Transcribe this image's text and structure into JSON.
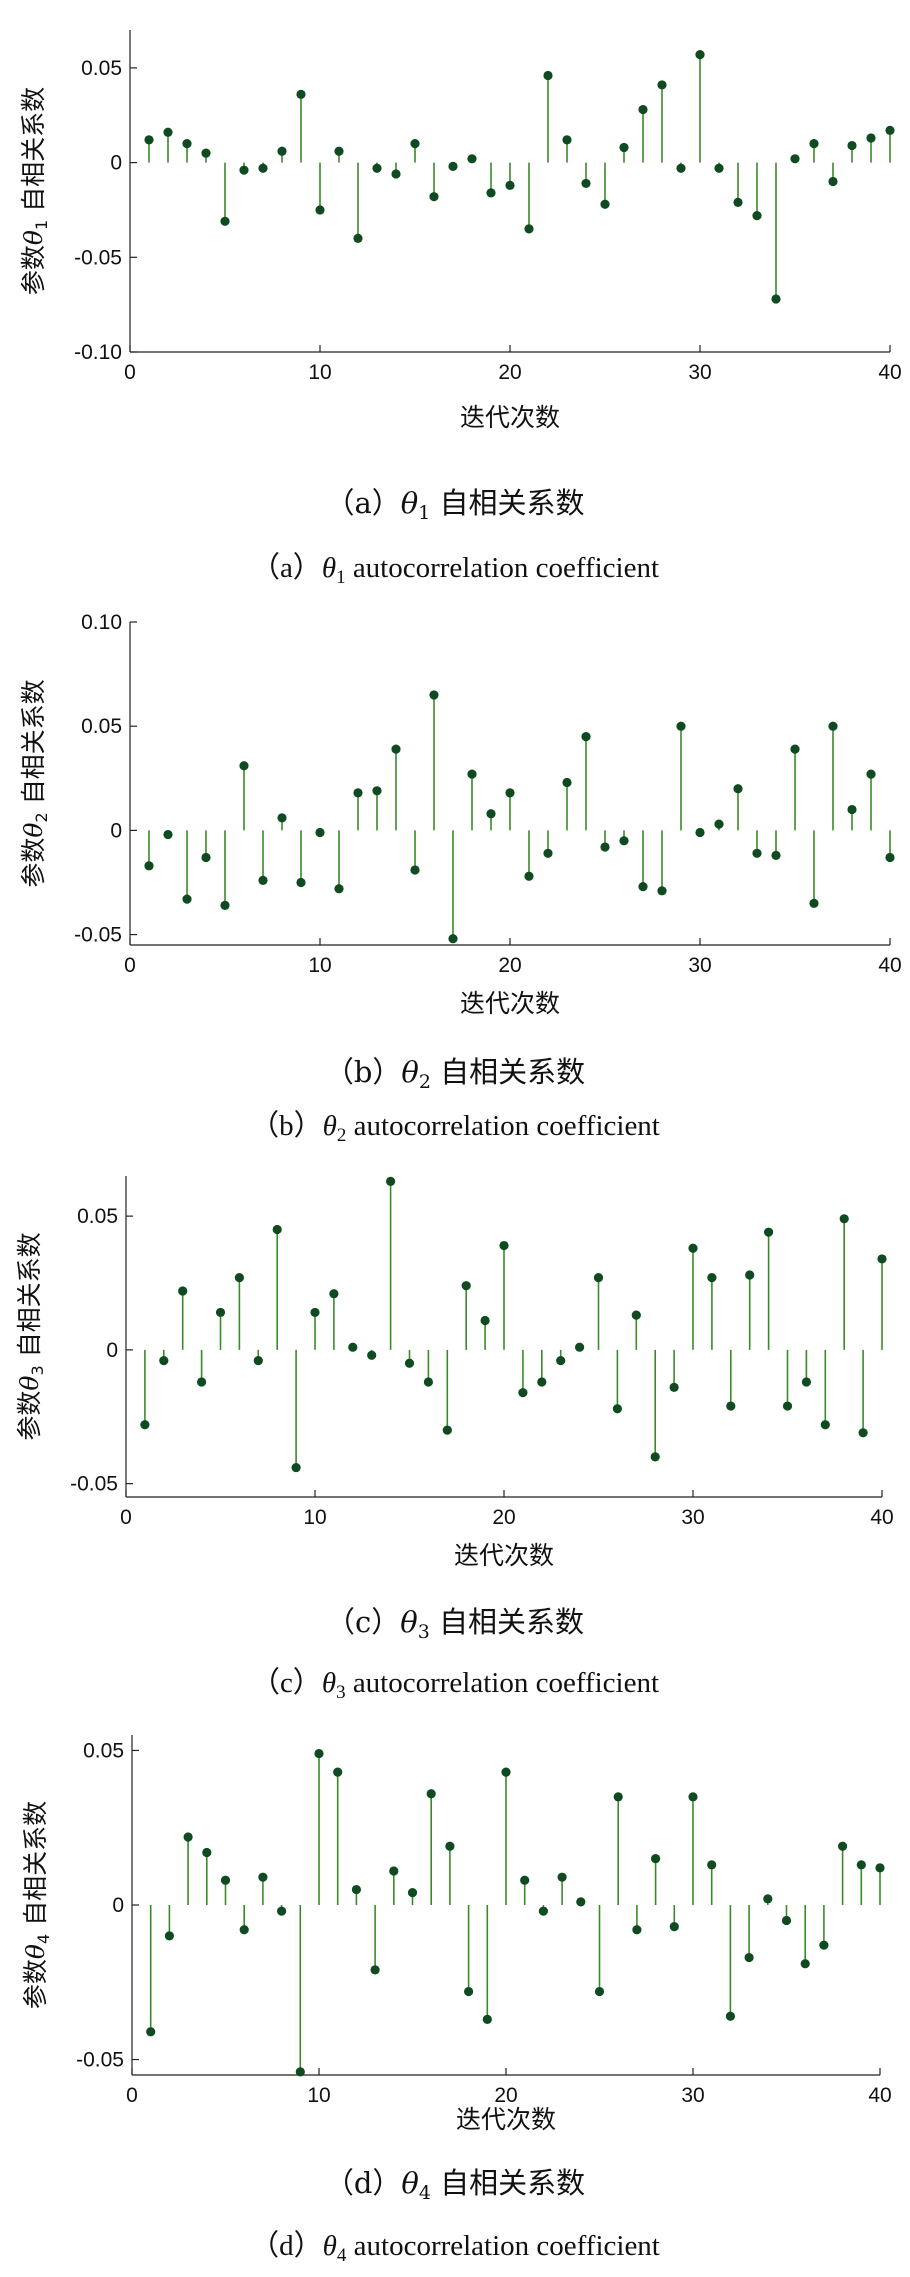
{
  "stem_color": "#3a8a2a",
  "marker_color": "#0f4a20",
  "chart_data": [
    {
      "type": "stem",
      "x": [
        1,
        2,
        3,
        4,
        5,
        6,
        7,
        8,
        9,
        10,
        11,
        12,
        13,
        14,
        15,
        16,
        17,
        18,
        19,
        20,
        21,
        22,
        23,
        24,
        25,
        26,
        27,
        28,
        29,
        30,
        31,
        32,
        33,
        34,
        35,
        36,
        37,
        38,
        39,
        40
      ],
      "values": [
        0.012,
        0.016,
        0.01,
        0.005,
        -0.031,
        -0.004,
        -0.003,
        0.006,
        0.036,
        -0.025,
        0.006,
        -0.04,
        -0.003,
        -0.006,
        0.01,
        -0.018,
        -0.002,
        0.002,
        -0.016,
        -0.012,
        -0.035,
        0.046,
        0.012,
        -0.011,
        -0.022,
        0.008,
        0.028,
        0.041,
        -0.003,
        0.057,
        -0.003,
        -0.021,
        -0.028,
        -0.072,
        0.002,
        0.01,
        -0.01,
        0.009,
        0.013,
        0.017
      ],
      "xlim": [
        0,
        40
      ],
      "ylim": [
        -0.1,
        0.07
      ],
      "xticks": [
        "0",
        "10",
        "20",
        "30",
        "40"
      ],
      "yticks": [
        {
          "value": 0.05,
          "label": "0.05"
        },
        {
          "value": 0,
          "label": "0"
        },
        {
          "value": -0.05,
          "label": "-0.05"
        },
        {
          "value": -0.1,
          "label": "-0.10"
        }
      ],
      "ylabel_prefix": "参数",
      "ylabel_symbol": "θ",
      "ylabel_sub": "1",
      "ylabel_suffix": " 自相关系数",
      "xlabel": "迭代次数",
      "caption_zh": {
        "prefix": "（a）",
        "symbol": "θ",
        "sub": "1",
        "suffix": " 自相关系数"
      },
      "caption_en": {
        "prefix": "（a）",
        "symbol": "θ",
        "sub": "1",
        "suffix": " autocorrelation coefficient"
      }
    },
    {
      "type": "stem",
      "x": [
        1,
        2,
        3,
        4,
        5,
        6,
        7,
        8,
        9,
        10,
        11,
        12,
        13,
        14,
        15,
        16,
        17,
        18,
        19,
        20,
        21,
        22,
        23,
        24,
        25,
        26,
        27,
        28,
        29,
        30,
        31,
        32,
        33,
        34,
        35,
        36,
        37,
        38,
        39,
        40
      ],
      "values": [
        -0.017,
        -0.002,
        -0.033,
        -0.013,
        -0.036,
        0.031,
        -0.024,
        0.006,
        -0.025,
        -0.001,
        -0.028,
        0.018,
        0.019,
        0.039,
        -0.019,
        0.065,
        -0.052,
        0.027,
        0.008,
        0.018,
        -0.022,
        -0.011,
        0.023,
        0.045,
        -0.008,
        -0.005,
        -0.027,
        -0.029,
        0.05,
        -0.001,
        0.003,
        0.02,
        -0.011,
        -0.012,
        0.039,
        -0.035,
        0.05,
        0.01,
        0.027,
        -0.013
      ],
      "xlim": [
        0,
        40
      ],
      "ylim": [
        -0.055,
        0.1
      ],
      "xticks": [
        "0",
        "10",
        "20",
        "30",
        "40"
      ],
      "yticks": [
        {
          "value": 0.1,
          "label": "0.10"
        },
        {
          "value": 0.05,
          "label": "0.05"
        },
        {
          "value": 0,
          "label": "0"
        },
        {
          "value": -0.05,
          "label": "-0.05"
        }
      ],
      "ylabel_prefix": "参数",
      "ylabel_symbol": "θ",
      "ylabel_sub": "2",
      "ylabel_suffix": " 自相关系数",
      "xlabel": "迭代次数",
      "caption_zh": {
        "prefix": "（b）",
        "symbol": "θ",
        "sub": "2",
        "suffix": " 自相关系数"
      },
      "caption_en": {
        "prefix": "（b）",
        "symbol": "θ",
        "sub": "2",
        "suffix": " autocorrelation coefficient"
      }
    },
    {
      "type": "stem",
      "x": [
        1,
        2,
        3,
        4,
        5,
        6,
        7,
        8,
        9,
        10,
        11,
        12,
        13,
        14,
        15,
        16,
        17,
        18,
        19,
        20,
        21,
        22,
        23,
        24,
        25,
        26,
        27,
        28,
        29,
        30,
        31,
        32,
        33,
        34,
        35,
        36,
        37,
        38,
        39,
        40
      ],
      "values": [
        -0.028,
        -0.004,
        0.022,
        -0.012,
        0.014,
        0.027,
        -0.004,
        0.045,
        -0.044,
        0.014,
        0.021,
        0.001,
        -0.002,
        0.063,
        -0.005,
        -0.012,
        -0.03,
        0.024,
        0.011,
        0.039,
        -0.016,
        -0.012,
        -0.004,
        0.001,
        0.027,
        -0.022,
        0.013,
        -0.04,
        -0.014,
        0.038,
        0.027,
        -0.021,
        0.028,
        0.044,
        -0.021,
        -0.012,
        -0.028,
        0.049,
        -0.031,
        0.034
      ],
      "xlim": [
        0,
        40
      ],
      "ylim": [
        -0.055,
        0.065
      ],
      "xticks": [
        "0",
        "10",
        "20",
        "30",
        "40"
      ],
      "yticks": [
        {
          "value": 0.05,
          "label": "0.05"
        },
        {
          "value": 0,
          "label": "0"
        },
        {
          "value": -0.05,
          "label": "-0.05"
        }
      ],
      "ylabel_prefix": "参数",
      "ylabel_symbol": "θ",
      "ylabel_sub": "3",
      "ylabel_suffix": " 自相关系数",
      "xlabel": "迭代次数",
      "caption_zh": {
        "prefix": "（c）",
        "symbol": "θ",
        "sub": "3",
        "suffix": " 自相关系数"
      },
      "caption_en": {
        "prefix": "（c）",
        "symbol": "θ",
        "sub": "3",
        "suffix": " autocorrelation coefficient"
      }
    },
    {
      "type": "stem",
      "x": [
        1,
        2,
        3,
        4,
        5,
        6,
        7,
        8,
        9,
        10,
        11,
        12,
        13,
        14,
        15,
        16,
        17,
        18,
        19,
        20,
        21,
        22,
        23,
        24,
        25,
        26,
        27,
        28,
        29,
        30,
        31,
        32,
        33,
        34,
        35,
        36,
        37,
        38,
        39,
        40
      ],
      "values": [
        -0.041,
        -0.01,
        0.022,
        0.017,
        0.008,
        -0.008,
        0.009,
        -0.002,
        -0.054,
        0.049,
        0.043,
        0.005,
        -0.021,
        0.011,
        0.004,
        0.036,
        0.019,
        -0.028,
        -0.037,
        0.043,
        0.008,
        -0.002,
        0.009,
        0.001,
        -0.028,
        0.035,
        -0.008,
        0.015,
        -0.007,
        0.035,
        0.013,
        -0.036,
        -0.017,
        0.002,
        -0.005,
        -0.019,
        -0.013,
        0.019,
        0.013,
        0.012
      ],
      "xlim": [
        0,
        40
      ],
      "ylim": [
        -0.055,
        0.055
      ],
      "xticks": [
        "0",
        "10",
        "20",
        "30",
        "40"
      ],
      "yticks": [
        {
          "value": 0.05,
          "label": "0.05"
        },
        {
          "value": 0,
          "label": "0"
        },
        {
          "value": -0.05,
          "label": "-0.05"
        }
      ],
      "ylabel_prefix": "参数",
      "ylabel_symbol": "θ",
      "ylabel_sub": "4",
      "ylabel_suffix": " 自相关系数",
      "xlabel": "迭代次数",
      "caption_zh": {
        "prefix": "（d）",
        "symbol": "θ",
        "sub": "4",
        "suffix": " 自相关系数"
      },
      "caption_en": {
        "prefix": "（d）",
        "symbol": "θ",
        "sub": "4",
        "suffix": " autocorrelation coefficient"
      }
    }
  ]
}
